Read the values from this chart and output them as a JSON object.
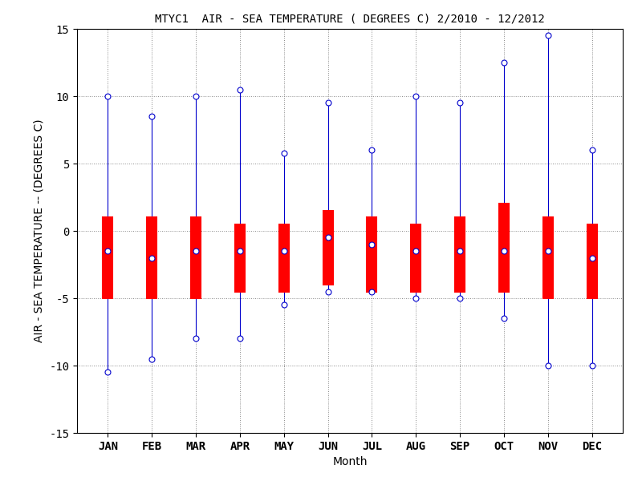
{
  "title": "MTYC1  AIR - SEA TEMPERATURE ( DEGREES C) 2/2010 - 12/2012",
  "xlabel": "Month",
  "ylabel": "AIR - SEA TEMPERATURE -- (DEGREES C)",
  "months": [
    "JAN",
    "FEB",
    "MAR",
    "APR",
    "MAY",
    "JUN",
    "JUL",
    "AUG",
    "SEP",
    "OCT",
    "NOV",
    "DEC"
  ],
  "means": [
    -1.5,
    -2.0,
    -1.5,
    -1.5,
    -1.5,
    -0.5,
    -1.0,
    -1.5,
    -1.5,
    -1.5,
    -1.5,
    -2.0
  ],
  "upper_box": [
    1.0,
    1.0,
    1.0,
    0.5,
    0.5,
    1.5,
    1.0,
    0.5,
    1.0,
    2.0,
    1.0,
    0.5
  ],
  "lower_box": [
    -5.0,
    -5.0,
    -5.0,
    -4.5,
    -4.5,
    -4.0,
    -4.5,
    -4.5,
    -4.5,
    -4.5,
    -5.0,
    -5.0
  ],
  "max_vals": [
    10.0,
    8.5,
    10.0,
    10.5,
    5.8,
    9.5,
    6.0,
    10.0,
    9.5,
    12.5,
    14.5,
    6.0
  ],
  "min_vals": [
    -10.5,
    -9.5,
    -8.0,
    -8.0,
    -5.5,
    -4.5,
    -4.5,
    -5.0,
    -5.0,
    -6.5,
    -10.0,
    -10.0
  ],
  "ylim": [
    -15,
    15
  ],
  "yticks": [
    -15,
    -10,
    -5,
    0,
    5,
    10,
    15
  ],
  "box_color": "#ff0000",
  "line_color": "#0000cc",
  "box_width": 0.22,
  "background_color": "white",
  "grid_color": "#888888",
  "title_fontsize": 10,
  "label_fontsize": 10,
  "tick_fontsize": 10
}
